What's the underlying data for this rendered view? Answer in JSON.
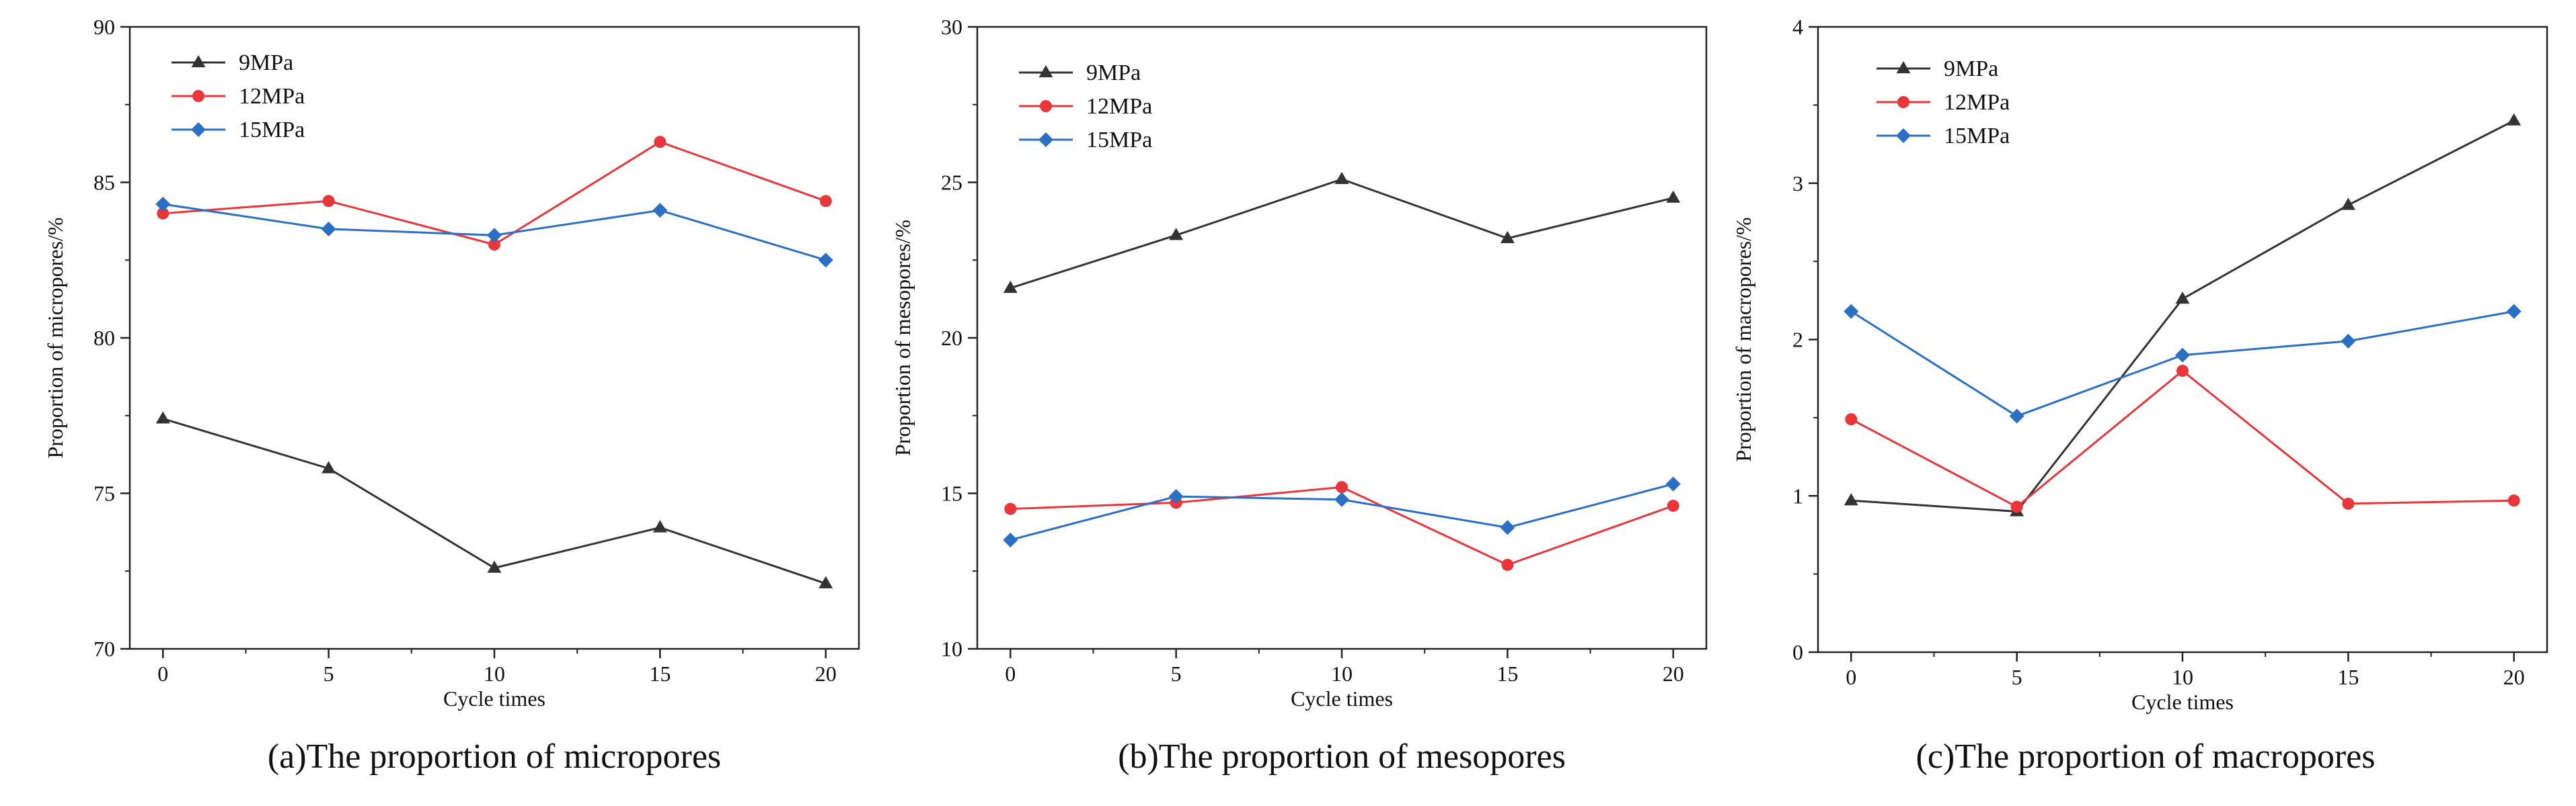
{
  "figure": {
    "series_styles": [
      {
        "name": "9MPa",
        "color": "#333333",
        "marker": "triangle"
      },
      {
        "name": "12MPa",
        "color": "#e8363b",
        "marker": "circle"
      },
      {
        "name": "15MPa",
        "color": "#2a6fc4",
        "marker": "diamond"
      }
    ]
  },
  "chart_data": [
    {
      "type": "line",
      "caption": "(a)The proportion of micropores",
      "xlabel": "Cycle times",
      "ylabel": "Proportion of micropores/%",
      "x": [
        0,
        5,
        10,
        15,
        20
      ],
      "xticks": [
        0,
        5,
        10,
        15,
        20
      ],
      "xlim": [
        -1,
        21
      ],
      "ylim": [
        70,
        90
      ],
      "yticks": [
        70,
        75,
        80,
        85,
        90
      ],
      "legend_position": "top-left",
      "series": [
        {
          "name": "9MPa",
          "values": [
            77.4,
            75.8,
            72.6,
            73.9,
            72.1
          ]
        },
        {
          "name": "12MPa",
          "values": [
            84.0,
            84.4,
            83.0,
            86.3,
            84.4
          ]
        },
        {
          "name": "15MPa",
          "values": [
            84.3,
            83.5,
            83.3,
            84.1,
            82.5
          ]
        }
      ]
    },
    {
      "type": "line",
      "caption": "(b)The proportion of mesopores",
      "xlabel": "Cycle times",
      "ylabel": "Proportion of mesopores/%",
      "x": [
        0,
        5,
        10,
        15,
        20
      ],
      "xticks": [
        0,
        5,
        10,
        15,
        20
      ],
      "xlim": [
        -1,
        21
      ],
      "ylim": [
        10,
        30
      ],
      "yticks": [
        10,
        15,
        20,
        25,
        30
      ],
      "legend_position": "top-left",
      "series": [
        {
          "name": "9MPa",
          "values": [
            21.6,
            23.3,
            25.1,
            23.2,
            24.5
          ]
        },
        {
          "name": "12MPa",
          "values": [
            14.5,
            14.7,
            15.2,
            12.7,
            14.6
          ]
        },
        {
          "name": "15MPa",
          "values": [
            13.5,
            14.9,
            14.8,
            13.9,
            15.3
          ]
        }
      ]
    },
    {
      "type": "line",
      "caption": "(c)The proportion of macropores",
      "xlabel": "Cycle times",
      "ylabel": "Proportion of macropores/%",
      "x": [
        0,
        5,
        10,
        15,
        20
      ],
      "xticks": [
        0,
        5,
        10,
        15,
        20
      ],
      "xlim": [
        -1,
        21
      ],
      "ylim": [
        0,
        4
      ],
      "yticks": [
        0,
        1,
        2,
        3,
        4
      ],
      "legend_position": "top-left",
      "series": [
        {
          "name": "9MPa",
          "values": [
            0.97,
            0.9,
            2.26,
            2.86,
            3.4
          ]
        },
        {
          "name": "12MPa",
          "values": [
            1.49,
            0.93,
            1.8,
            0.95,
            0.97
          ]
        },
        {
          "name": "15MPa",
          "values": [
            2.18,
            1.51,
            1.9,
            1.99,
            2.18
          ]
        }
      ]
    }
  ]
}
